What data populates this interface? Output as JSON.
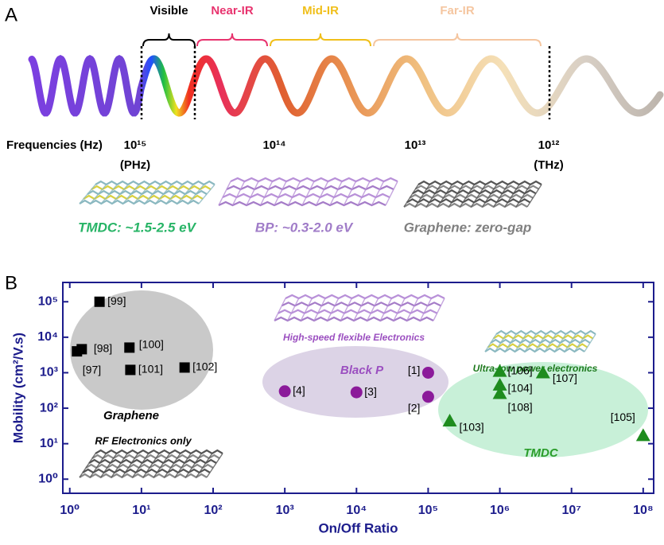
{
  "panel_a": {
    "label": "A",
    "bands": [
      {
        "label": "Visible",
        "color": "#000000"
      },
      {
        "label": "Near-IR",
        "color": "#e8336e"
      },
      {
        "label": "Mid-IR",
        "color": "#f0bf1a"
      },
      {
        "label": "Far-IR",
        "color": "#f5c6a0"
      }
    ],
    "frequency_title": "Frequencies (Hz)",
    "frequencies": [
      {
        "label": "10¹⁵",
        "unit": "(PHz)"
      },
      {
        "label": "10¹⁴"
      },
      {
        "label": "10¹³"
      },
      {
        "label": "10¹²",
        "unit": "(THz)"
      }
    ],
    "materials": [
      {
        "label": "TMDC: ~1.5-2.5 eV",
        "color": "#27b466"
      },
      {
        "label": "BP: ~0.3-2.0 eV",
        "color": "#a07cc8"
      },
      {
        "label": "Graphene: zero-gap",
        "color": "#7f7f7f"
      }
    ]
  },
  "chart_data": {
    "type": "scatter",
    "panel_label": "B",
    "xlabel": "On/Off Ratio",
    "ylabel": "Mobility (cm²/V.s)",
    "log_x": true,
    "log_y": true,
    "axis_color": "#1c1c8c",
    "xlim": [
      0.8,
      140000000
    ],
    "ylim": [
      0.4,
      350000
    ],
    "xticks": [
      {
        "value": 1,
        "label": "10⁰"
      },
      {
        "value": 10,
        "label": "10¹"
      },
      {
        "value": 100,
        "label": "10²"
      },
      {
        "value": 1000,
        "label": "10³"
      },
      {
        "value": 10000,
        "label": "10⁴"
      },
      {
        "value": 100000,
        "label": "10⁵"
      },
      {
        "value": 1000000,
        "label": "10⁶"
      },
      {
        "value": 10000000,
        "label": "10⁷"
      },
      {
        "value": 100000000,
        "label": "10⁸"
      }
    ],
    "yticks": [
      {
        "value": 1,
        "label": "10⁰"
      },
      {
        "value": 10,
        "label": "10¹"
      },
      {
        "value": 100,
        "label": "10²"
      },
      {
        "value": 1000,
        "label": "10³"
      },
      {
        "value": 10000,
        "label": "10⁴"
      },
      {
        "value": 100000,
        "label": "10⁵"
      }
    ],
    "series": [
      {
        "name": "Graphene",
        "color": "#000000",
        "label_color": "#000000",
        "region_color": "#c9c9c9",
        "marker": "square",
        "x": [
          2.6,
          6.8,
          1.47,
          1.26,
          7,
          40
        ],
        "values": [
          100000,
          5100,
          4600,
          4000,
          1200,
          1400
        ],
        "point_labels": [
          "[99]",
          "[100]",
          "[98]",
          "[97]",
          "[101]",
          "[102]"
        ]
      },
      {
        "name": "Black P",
        "color": "#8b1a9a",
        "label_color": "#9b4fc0",
        "region_color": "#dcd3e6",
        "marker": "circle",
        "x": [
          100000,
          100000,
          10000,
          1000
        ],
        "values": [
          1000,
          210,
          280,
          300
        ],
        "point_labels": [
          "[1]",
          "[2]",
          "[3]",
          "[4]"
        ]
      },
      {
        "name": "TMDC",
        "color": "#1e8c1e",
        "label_color": "#2a9d2a",
        "region_color": "#c8f0d8",
        "marker": "triangle",
        "x": [
          1000000,
          1000000,
          4000000,
          1000000,
          200000,
          100000000
        ],
        "values": [
          1100,
          450,
          1000,
          260,
          44,
          17
        ],
        "point_labels": [
          "[106]",
          "[104]",
          "[107]",
          "[108]",
          "[103]",
          "[105]"
        ]
      }
    ],
    "annotations": [
      {
        "text": "RF Electronics only",
        "color": "#000000"
      },
      {
        "text": "High-speed flexible Electronics",
        "color": "#9b4fc0"
      },
      {
        "text": "Ultra-low power electronics",
        "color": "#1e7a1e"
      }
    ]
  }
}
